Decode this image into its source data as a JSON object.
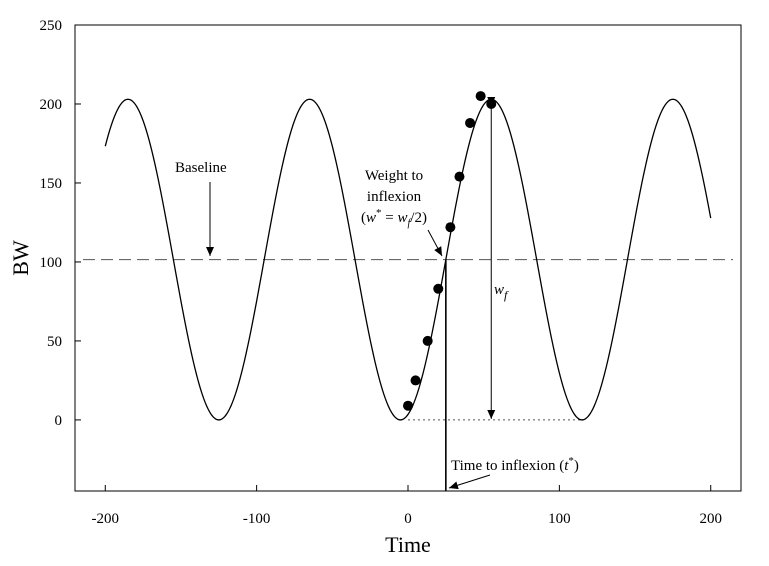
{
  "chart_data": {
    "type": "line",
    "title": "",
    "xlabel": "Time",
    "ylabel": "BW",
    "xlim": [
      -220,
      220
    ],
    "ylim": [
      -45,
      250
    ],
    "grid": false,
    "x_ticks": [
      -200,
      -100,
      0,
      100,
      200
    ],
    "x_tick_labels": [
      "-200",
      "-100",
      "0",
      "100",
      "200"
    ],
    "y_ticks": [
      0,
      50,
      100,
      150,
      200,
      250
    ],
    "y_tick_labels": [
      "0",
      "50",
      "100",
      "150",
      "200",
      "250"
    ],
    "series": [
      {
        "style": "solid-curve",
        "function": "sinusoid",
        "x_range": [
          -200,
          200
        ],
        "baseline": 101.5,
        "amplitude": 101.5,
        "period": 120,
        "min_at_x": -5
      },
      {
        "style": "scatter-filled-circles",
        "points": [
          {
            "x": 0,
            "y": 9
          },
          {
            "x": 5,
            "y": 25
          },
          {
            "x": 13,
            "y": 50
          },
          {
            "x": 20,
            "y": 83
          },
          {
            "x": 28,
            "y": 122
          },
          {
            "x": 34,
            "y": 154
          },
          {
            "x": 41,
            "y": 188
          },
          {
            "x": 48,
            "y": 205
          },
          {
            "x": 55,
            "y": 200
          }
        ]
      }
    ],
    "baseline_line": {
      "y": 101.5,
      "style": "dashed"
    },
    "inflexion": {
      "x": 25,
      "y": 101.5
    },
    "wf_arrow": {
      "x": 55,
      "y_top": 200,
      "y_bottom": 0
    },
    "wf_floor_line": {
      "y": 0,
      "x_from": 0,
      "x_to": 115,
      "style": "dotted"
    },
    "annotations": {
      "baseline": "Baseline",
      "weight_line1": "Weight to",
      "weight_line2": "inflexion",
      "weight_formula": {
        "open": "(",
        "w": "w",
        "star": "*",
        "eq": " = ",
        "wf": "w",
        "sub": "f",
        "div": "/2)"
      },
      "wf_label": {
        "w": "w",
        "sub": "f"
      },
      "time_label": {
        "text": "Time to inflexion (",
        "t": "t",
        "star": "*",
        "close": ")"
      }
    }
  }
}
